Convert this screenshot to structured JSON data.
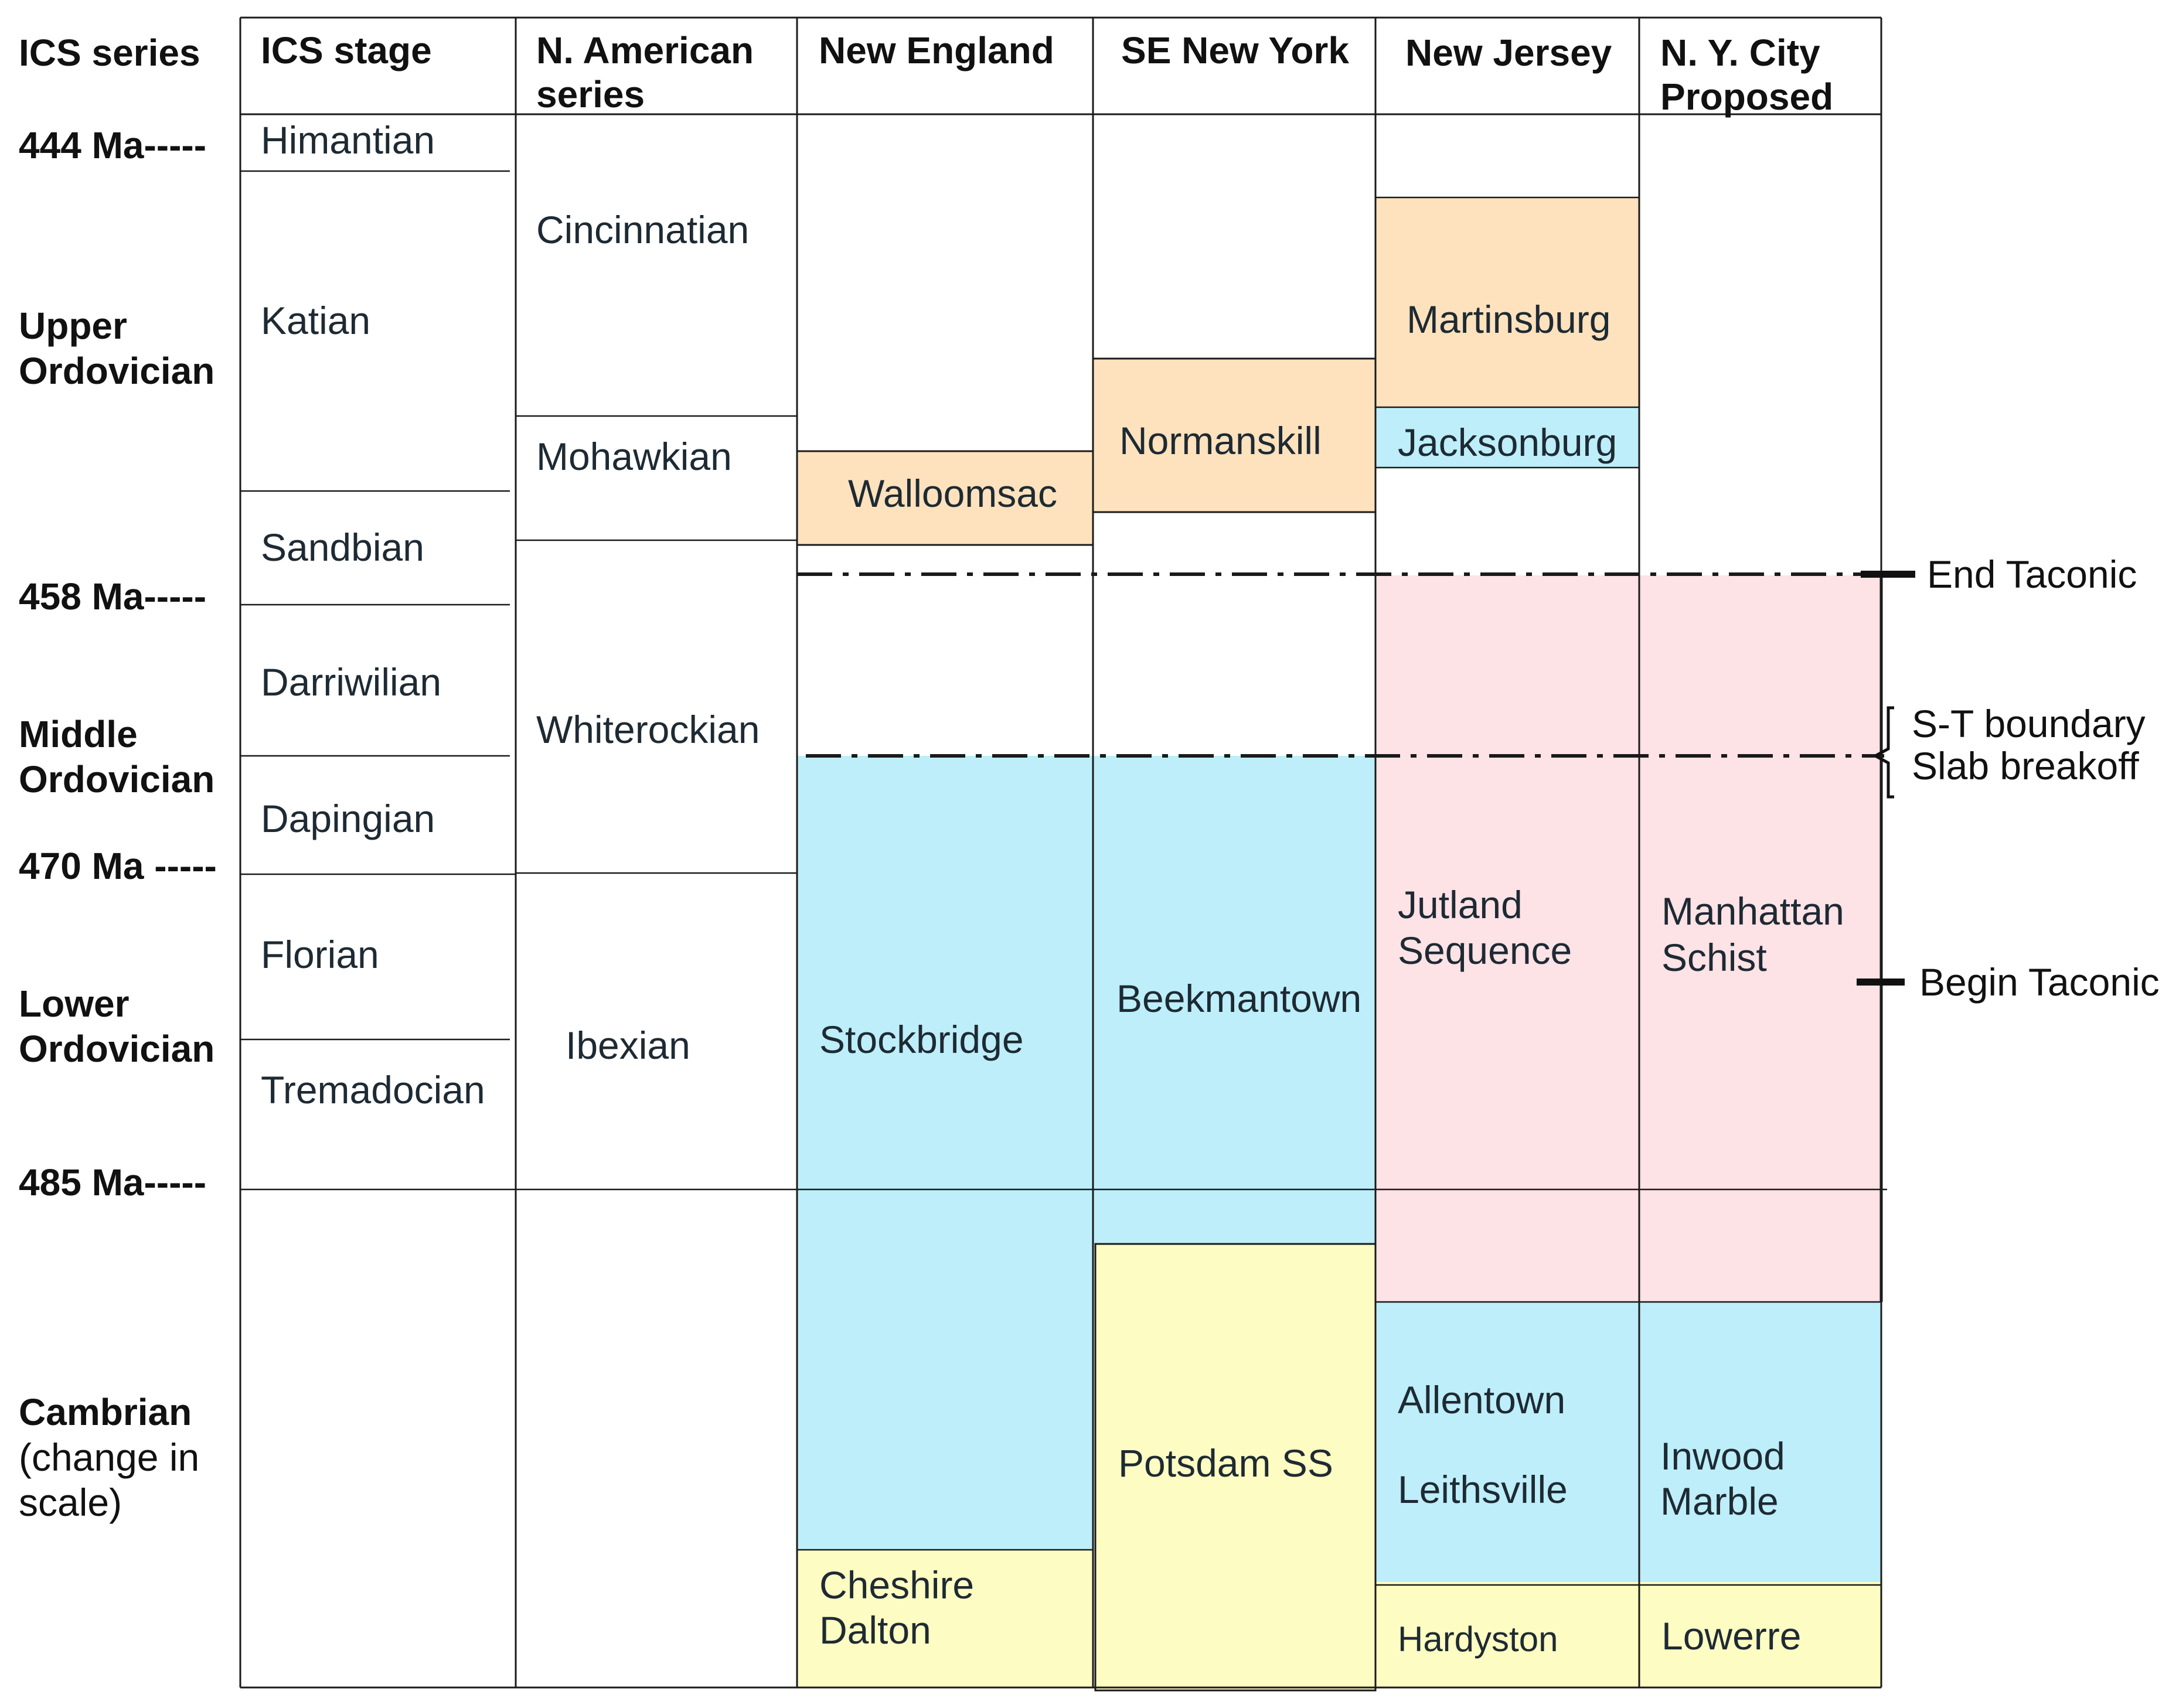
{
  "colors": {
    "orange": "#fde2bd",
    "blue": "#bdeefa",
    "pink": "#fde2e6",
    "yellow": "#fdfcc2",
    "line": "#1a1a1a",
    "text": "#1e2a33"
  },
  "headers": {
    "ics_series": "ICS series",
    "ics_stage": "ICS stage",
    "na_series_1": "N. American",
    "na_series_2": "series",
    "new_england": "New England",
    "se_new_york": "SE New York",
    "new_jersey": "New Jersey",
    "nyc_1": "N. Y. City",
    "nyc_2": "Proposed"
  },
  "ages": {
    "a444": "444 Ma-----",
    "a458": "458 Ma-----",
    "a470": "470 Ma -----",
    "a485": "485 Ma-----"
  },
  "series_labels": {
    "upper_1": "Upper",
    "upper_2": "Ordovician",
    "middle_1": "Middle",
    "middle_2": "Ordovician",
    "lower_1": "Lower",
    "lower_2": "Ordovician",
    "cambrian_1": "Cambrian",
    "cambrian_2": "(change in",
    "cambrian_3": "scale)"
  },
  "stages": {
    "himantian": "Himantian",
    "katian": "Katian",
    "sandbian": "Sandbian",
    "darriwilian": "Darriwilian",
    "dapingian": "Dapingian",
    "florian": "Florian",
    "tremadocian": "Tremadocian"
  },
  "na_series": {
    "cincinnatian": "Cincinnatian",
    "mohawkian": "Mohawkian",
    "whiterockian": "Whiterockian",
    "ibexian": "Ibexian"
  },
  "units": {
    "walloomsac": "Walloomsac",
    "stockbridge": "Stockbridge",
    "cheshire": "Cheshire",
    "dalton": "Dalton",
    "normanskill": "Normanskill",
    "beekmantown": "Beekmantown",
    "potsdam": "Potsdam SS",
    "martinsburg": "Martinsburg",
    "jacksonburg": "Jacksonburg",
    "jutland_1": "Jutland",
    "jutland_2": "Sequence",
    "allentown": "Allentown",
    "leithsville": "Leithsville",
    "hardyston": "Hardyston",
    "manhattan_1": "Manhattan",
    "manhattan_2": "Schist",
    "inwood_1": "Inwood",
    "inwood_2": "Marble",
    "lowerre": "Lowerre"
  },
  "events": {
    "end_taconic": "End Taconic",
    "st_boundary": "S-T boundary",
    "slab_breakoff": "Slab breakoff",
    "begin_taconic": "Begin Taconic"
  }
}
